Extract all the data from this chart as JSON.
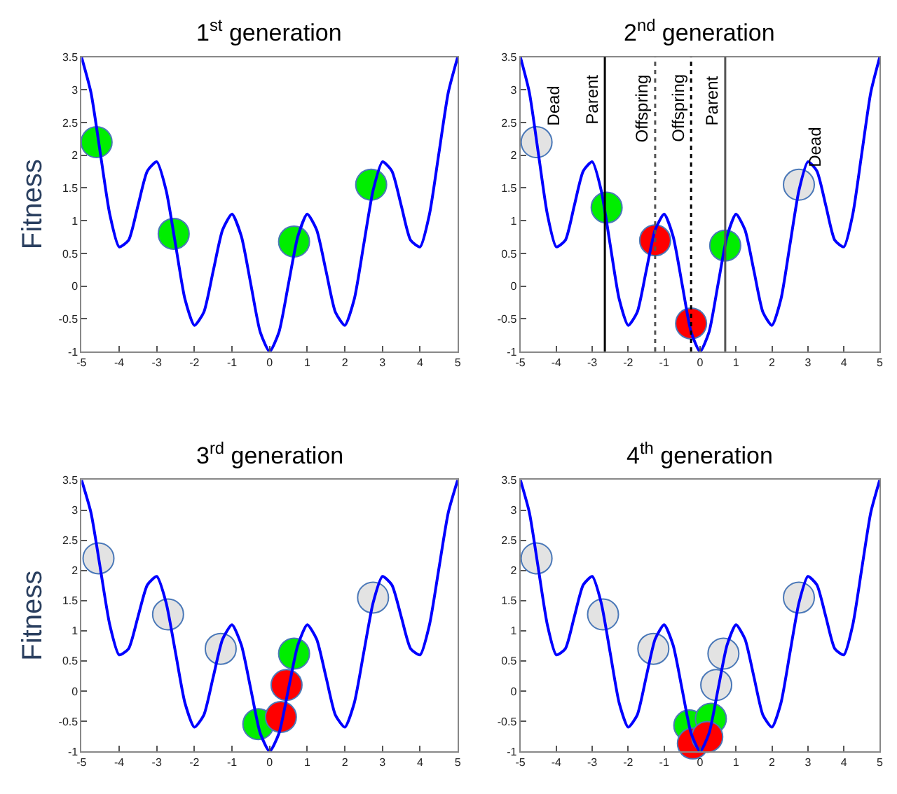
{
  "chart_data": [
    {
      "type": "line",
      "title": "1$^{st}$ generation",
      "ylabel": "Fitness",
      "xlim": [
        -5,
        5
      ],
      "xticks": [
        -5,
        -4,
        -3,
        -2,
        -1,
        0,
        1,
        2,
        3,
        4,
        5
      ],
      "ylim": [
        -1,
        3.5
      ],
      "yticks": [
        -1,
        -0.5,
        0,
        0.5,
        1,
        1.5,
        2,
        2.5,
        3,
        3.5
      ],
      "series": [
        {
          "color": "#0000ff",
          "x": [
            -5,
            -4.75,
            -4.5,
            -4.25,
            -4,
            -3.75,
            -3.5,
            -3.25,
            -3,
            -2.75,
            -2.5,
            -2.25,
            -2,
            -1.75,
            -1.5,
            -1.25,
            -1,
            -0.75,
            -0.5,
            -0.25,
            0,
            0.25,
            0.5,
            0.75,
            1,
            1.25,
            1.5,
            1.75,
            2,
            2.25,
            2.5,
            2.75,
            3,
            3.25,
            3.5,
            3.75,
            4,
            4.25,
            4.5,
            4.75,
            5
          ],
          "values": [
            3.5,
            2.96,
            2.03,
            1.1,
            0.6,
            0.7,
            1.23,
            1.76,
            1.9,
            1.46,
            0.63,
            -0.2,
            -0.6,
            -0.4,
            0.23,
            0.86,
            1.1,
            0.76,
            0.03,
            -0.7,
            -1,
            -0.7,
            0.03,
            0.76,
            1.1,
            0.86,
            0.23,
            -0.4,
            -0.6,
            -0.2,
            0.63,
            1.46,
            1.9,
            1.76,
            1.23,
            0.7,
            0.6,
            1.1,
            2.03,
            2.96,
            3.5
          ]
        },
        {
          "type": "scatter",
          "color": "#00ee00",
          "x": [
            -4.6,
            -2.55,
            0.65,
            2.7
          ],
          "values": [
            2.2,
            0.8,
            0.68,
            1.55
          ]
        }
      ]
    },
    {
      "type": "line",
      "title": "2$^{nd}$ generation",
      "xlim": [
        -5,
        5
      ],
      "xticks": [
        -5,
        -4,
        -3,
        -2,
        -1,
        0,
        1,
        2,
        3,
        4,
        5
      ],
      "ylim": [
        -1,
        3.5
      ],
      "yticks": [
        -1,
        -0.5,
        0,
        0.5,
        1,
        1.5,
        2,
        2.5,
        3,
        3.5
      ],
      "series": [
        {
          "color": "#0000ff",
          "x": [
            -5,
            -4.75,
            -4.5,
            -4.25,
            -4,
            -3.75,
            -3.5,
            -3.25,
            -3,
            -2.75,
            -2.5,
            -2.25,
            -2,
            -1.75,
            -1.5,
            -1.25,
            -1,
            -0.75,
            -0.5,
            -0.25,
            0,
            0.25,
            0.5,
            0.75,
            1,
            1.25,
            1.5,
            1.75,
            2,
            2.25,
            2.5,
            2.75,
            3,
            3.25,
            3.5,
            3.75,
            4,
            4.25,
            4.5,
            4.75,
            5
          ],
          "values": [
            3.5,
            2.96,
            2.03,
            1.1,
            0.6,
            0.7,
            1.23,
            1.76,
            1.9,
            1.46,
            0.63,
            -0.2,
            -0.6,
            -0.4,
            0.23,
            0.86,
            1.1,
            0.76,
            0.03,
            -0.7,
            -1,
            -0.7,
            0.03,
            0.76,
            1.1,
            0.86,
            0.23,
            -0.4,
            -0.6,
            -0.2,
            0.63,
            1.46,
            1.9,
            1.76,
            1.23,
            0.7,
            0.6,
            1.1,
            2.03,
            2.96,
            3.5
          ]
        },
        {
          "type": "scatter",
          "color": "#e3e3e3",
          "x": [
            -4.55,
            2.75
          ],
          "values": [
            2.2,
            1.55
          ]
        },
        {
          "type": "scatter",
          "color": "#00ee00",
          "x": [
            -2.6,
            0.7
          ],
          "values": [
            1.2,
            0.62
          ]
        },
        {
          "type": "scatter",
          "color": "#ff0000",
          "x": [
            -1.25,
            -0.25
          ],
          "values": [
            0.7,
            -0.57
          ]
        }
      ],
      "ref_lines": [
        {
          "axis": "x",
          "value": -2.65,
          "label": "Parent",
          "line_style": "solid",
          "color": "#000000"
        },
        {
          "axis": "x",
          "value": -1.25,
          "label": "Offspring",
          "line_style": "dotted",
          "color": "#555555"
        },
        {
          "axis": "x",
          "value": -0.25,
          "label": "Offspring",
          "line_style": "dotted",
          "color": "#000000"
        },
        {
          "axis": "x",
          "value": 0.7,
          "label": "Parent",
          "line_style": "solid",
          "color": "#555555"
        }
      ],
      "annotations": [
        {
          "text": "Dead",
          "x": -4.55,
          "y": 2.2
        },
        {
          "text": "Dead",
          "x": 2.75,
          "y": 1.55
        }
      ]
    },
    {
      "type": "line",
      "title": "3$^{rd}$ generation",
      "ylabel": "Fitness",
      "xlim": [
        -5,
        5
      ],
      "xticks": [
        -5,
        -4,
        -3,
        -2,
        -1,
        0,
        1,
        2,
        3,
        4,
        5
      ],
      "ylim": [
        -1,
        3.5
      ],
      "yticks": [
        -1,
        -0.5,
        0,
        0.5,
        1,
        1.5,
        2,
        2.5,
        3,
        3.5
      ],
      "series": [
        {
          "color": "#0000ff",
          "x": [
            -5,
            -4.75,
            -4.5,
            -4.25,
            -4,
            -3.75,
            -3.5,
            -3.25,
            -3,
            -2.75,
            -2.5,
            -2.25,
            -2,
            -1.75,
            -1.5,
            -1.25,
            -1,
            -0.75,
            -0.5,
            -0.25,
            0,
            0.25,
            0.5,
            0.75,
            1,
            1.25,
            1.5,
            1.75,
            2,
            2.25,
            2.5,
            2.75,
            3,
            3.25,
            3.5,
            3.75,
            4,
            4.25,
            4.5,
            4.75,
            5
          ],
          "values": [
            3.5,
            2.96,
            2.03,
            1.1,
            0.6,
            0.7,
            1.23,
            1.76,
            1.9,
            1.46,
            0.63,
            -0.2,
            -0.6,
            -0.4,
            0.23,
            0.86,
            1.1,
            0.76,
            0.03,
            -0.7,
            -1,
            -0.7,
            0.03,
            0.76,
            1.1,
            0.86,
            0.23,
            -0.4,
            -0.6,
            -0.2,
            0.63,
            1.46,
            1.9,
            1.76,
            1.23,
            0.7,
            0.6,
            1.1,
            2.03,
            2.96,
            3.5
          ]
        },
        {
          "type": "scatter",
          "color": "#e3e3e3",
          "x": [
            -4.55,
            -2.7,
            -1.3,
            2.75
          ],
          "values": [
            2.2,
            1.27,
            0.7,
            1.55
          ]
        },
        {
          "type": "scatter",
          "color": "#00ee00",
          "x": [
            0.65,
            -0.3
          ],
          "values": [
            0.62,
            -0.55
          ]
        },
        {
          "type": "scatter",
          "color": "#ff0000",
          "x": [
            0.45,
            0.3
          ],
          "values": [
            0.1,
            -0.43
          ]
        }
      ]
    },
    {
      "type": "line",
      "title": "4$^{th}$ generation",
      "xlim": [
        -5,
        5
      ],
      "xticks": [
        -5,
        -4,
        -3,
        -2,
        -1,
        0,
        1,
        2,
        3,
        4,
        5
      ],
      "ylim": [
        -1,
        3.5
      ],
      "yticks": [
        -1,
        -0.5,
        0,
        0.5,
        1,
        1.5,
        2,
        2.5,
        3,
        3.5
      ],
      "series": [
        {
          "color": "#0000ff",
          "x": [
            -5,
            -4.75,
            -4.5,
            -4.25,
            -4,
            -3.75,
            -3.5,
            -3.25,
            -3,
            -2.75,
            -2.5,
            -2.25,
            -2,
            -1.75,
            -1.5,
            -1.25,
            -1,
            -0.75,
            -0.5,
            -0.25,
            0,
            0.25,
            0.5,
            0.75,
            1,
            1.25,
            1.5,
            1.75,
            2,
            2.25,
            2.5,
            2.75,
            3,
            3.25,
            3.5,
            3.75,
            4,
            4.25,
            4.5,
            4.75,
            5
          ],
          "values": [
            3.5,
            2.96,
            2.03,
            1.1,
            0.6,
            0.7,
            1.23,
            1.76,
            1.9,
            1.46,
            0.63,
            -0.2,
            -0.6,
            -0.4,
            0.23,
            0.86,
            1.1,
            0.76,
            0.03,
            -0.7,
            -1,
            -0.7,
            0.03,
            0.76,
            1.1,
            0.86,
            0.23,
            -0.4,
            -0.6,
            -0.2,
            0.63,
            1.46,
            1.9,
            1.76,
            1.23,
            0.7,
            0.6,
            1.1,
            2.03,
            2.96,
            3.5
          ]
        },
        {
          "type": "scatter",
          "color": "#e3e3e3",
          "x": [
            -4.55,
            -2.7,
            -1.3,
            2.75,
            0.65,
            0.45
          ],
          "values": [
            2.2,
            1.27,
            0.7,
            1.55,
            0.62,
            0.1
          ]
        },
        {
          "type": "scatter",
          "color": "#00ee00",
          "x": [
            -0.3,
            0.3
          ],
          "values": [
            -0.57,
            -0.46
          ]
        },
        {
          "type": "scatter",
          "color": "#ff0000",
          "x": [
            -0.2,
            0.2
          ],
          "values": [
            -0.87,
            -0.76
          ]
        }
      ]
    }
  ]
}
